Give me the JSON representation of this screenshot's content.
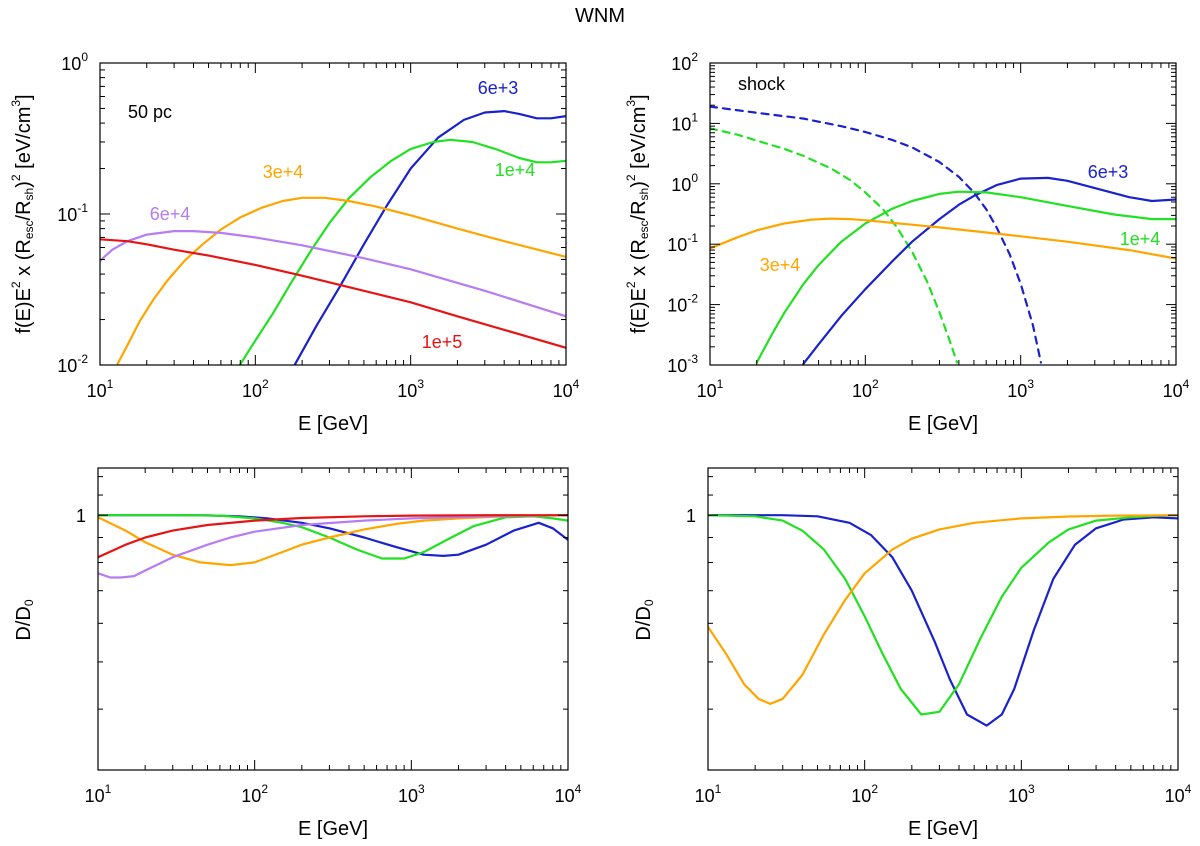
{
  "figure_title": "WNM",
  "colors": {
    "blue": "#1a22cc",
    "green": "#22e022",
    "orange": "#ffa500",
    "purple": "#b77cf2",
    "red": "#e61414"
  },
  "chart_data": [
    {
      "id": "tl",
      "type": "line",
      "xscale": "log",
      "yscale": "log",
      "xlim": [
        10,
        10000
      ],
      "ylim": [
        0.01,
        1
      ],
      "xlabel": "E [GeV]",
      "ylabel": "f(E)E^2 x (R_esc/R_sh)^2 [eV/cm^3]",
      "annotation": "50 pc",
      "x_ticks": [
        10,
        100,
        1000,
        10000
      ],
      "x_tick_labels": [
        {
          "base": "10",
          "exp": "1"
        },
        {
          "base": "10",
          "exp": "2"
        },
        {
          "base": "10",
          "exp": "3"
        },
        {
          "base": "10",
          "exp": "4"
        }
      ],
      "y_ticks": [
        0.01,
        0.1,
        1
      ],
      "y_tick_labels": [
        {
          "base": "10",
          "exp": "-2"
        },
        {
          "base": "10",
          "exp": "-1"
        },
        {
          "base": "10",
          "exp": "0"
        }
      ],
      "series": [
        {
          "name": "6e+3",
          "label": "6e+3",
          "color": "#1a22cc",
          "dash": false,
          "x": [
            180,
            250,
            350,
            500,
            700,
            1000,
            1500,
            2200,
            3000,
            4000,
            5000,
            6500,
            8000,
            10000
          ],
          "y": [
            0.0101,
            0.0185,
            0.033,
            0.063,
            0.113,
            0.2,
            0.32,
            0.42,
            0.47,
            0.48,
            0.46,
            0.43,
            0.43,
            0.445
          ]
        },
        {
          "name": "1e+4",
          "label": "1e+4",
          "color": "#22e022",
          "dash": false,
          "x": [
            80,
            100,
            130,
            170,
            230,
            300,
            400,
            550,
            750,
            1000,
            1400,
            1800,
            2500,
            3500,
            5000,
            6500,
            8000,
            10000
          ],
          "y": [
            0.0101,
            0.0145,
            0.022,
            0.035,
            0.058,
            0.087,
            0.127,
            0.175,
            0.225,
            0.27,
            0.3,
            0.31,
            0.3,
            0.27,
            0.235,
            0.22,
            0.22,
            0.225
          ]
        },
        {
          "name": "3e+4",
          "label": "3e+4",
          "color": "#ffa500",
          "dash": false,
          "x": [
            13,
            15,
            18,
            22,
            27,
            35,
            45,
            60,
            80,
            110,
            150,
            200,
            280,
            400,
            600,
            1000,
            2000,
            4000,
            10000
          ],
          "y": [
            0.0102,
            0.0135,
            0.0195,
            0.027,
            0.036,
            0.049,
            0.062,
            0.079,
            0.095,
            0.11,
            0.122,
            0.128,
            0.128,
            0.122,
            0.112,
            0.098,
            0.08,
            0.066,
            0.052
          ]
        },
        {
          "name": "6e+4",
          "label": "6e+4",
          "color": "#b77cf2",
          "dash": false,
          "x": [
            10,
            12,
            15,
            20,
            30,
            40,
            60,
            100,
            200,
            500,
            1000,
            3000,
            10000
          ],
          "y": [
            0.049,
            0.058,
            0.066,
            0.073,
            0.077,
            0.077,
            0.075,
            0.07,
            0.062,
            0.051,
            0.043,
            0.031,
            0.021
          ]
        },
        {
          "name": "1e+5",
          "label": "1e+5",
          "color": "#e61414",
          "dash": false,
          "x": [
            10,
            15,
            20,
            30,
            50,
            100,
            200,
            500,
            1000,
            2000,
            5000,
            10000
          ],
          "y": [
            0.068,
            0.066,
            0.063,
            0.058,
            0.053,
            0.046,
            0.039,
            0.031,
            0.026,
            0.021,
            0.016,
            0.013
          ]
        }
      ]
    },
    {
      "id": "tr",
      "type": "line",
      "xscale": "log",
      "yscale": "log",
      "xlim": [
        10,
        10000
      ],
      "ylim": [
        0.001,
        100
      ],
      "xlabel": "E [GeV]",
      "ylabel": "f(E)E^2 x (R_esc/R_sh)^2 [eV/cm^3]",
      "annotation": "shock",
      "x_ticks": [
        10,
        100,
        1000,
        10000
      ],
      "x_tick_labels": [
        {
          "base": "10",
          "exp": "1"
        },
        {
          "base": "10",
          "exp": "2"
        },
        {
          "base": "10",
          "exp": "3"
        },
        {
          "base": "10",
          "exp": "4"
        }
      ],
      "y_ticks": [
        0.001,
        0.01,
        0.1,
        1,
        10,
        100
      ],
      "y_tick_labels": [
        {
          "base": "10",
          "exp": "-3"
        },
        {
          "base": "10",
          "exp": "-2"
        },
        {
          "base": "10",
          "exp": "-1"
        },
        {
          "base": "10",
          "exp": "0"
        },
        {
          "base": "10",
          "exp": "1"
        },
        {
          "base": "10",
          "exp": "2"
        }
      ],
      "series": [
        {
          "name": "blue dashed",
          "label": "",
          "color": "#1a22cc",
          "dash": true,
          "x": [
            10,
            20,
            40,
            70,
            100,
            150,
            200,
            300,
            400,
            500,
            600,
            700,
            850,
            1000,
            1200,
            1350
          ],
          "y": [
            19,
            15,
            12,
            9,
            7.2,
            5.3,
            4,
            2.3,
            1.3,
            0.72,
            0.38,
            0.19,
            0.068,
            0.022,
            0.0045,
            0.0011
          ]
        },
        {
          "name": "green dashed",
          "label": "",
          "color": "#22e022",
          "dash": true,
          "x": [
            10,
            15,
            20,
            30,
            40,
            60,
            80,
            100,
            130,
            160,
            200,
            250,
            300,
            350,
            390
          ],
          "y": [
            8.3,
            6.5,
            5.2,
            3.8,
            2.9,
            1.8,
            1.15,
            0.72,
            0.38,
            0.19,
            0.075,
            0.024,
            0.0075,
            0.0025,
            0.0011
          ]
        },
        {
          "name": "6e+3",
          "label": "6e+3",
          "color": "#1a22cc",
          "dash": false,
          "x": [
            40,
            50,
            70,
            100,
            150,
            200,
            300,
            400,
            500,
            700,
            1000,
            1500,
            2000,
            3000,
            5000,
            7000,
            10000
          ],
          "y": [
            0.00105,
            0.0022,
            0.0065,
            0.018,
            0.053,
            0.11,
            0.26,
            0.45,
            0.63,
            0.95,
            1.22,
            1.25,
            1.12,
            0.85,
            0.6,
            0.52,
            0.55
          ]
        },
        {
          "name": "1e+4",
          "label": "1e+4",
          "color": "#22e022",
          "dash": false,
          "x": [
            20,
            25,
            30,
            40,
            50,
            70,
            100,
            150,
            200,
            300,
            400,
            600,
            1000,
            2000,
            4000,
            7000,
            10000
          ],
          "y": [
            0.0011,
            0.0032,
            0.0072,
            0.022,
            0.045,
            0.11,
            0.22,
            0.39,
            0.52,
            0.68,
            0.74,
            0.72,
            0.6,
            0.43,
            0.31,
            0.26,
            0.26
          ]
        },
        {
          "name": "3e+4",
          "label": "3e+4",
          "color": "#ffa500",
          "dash": false,
          "x": [
            10,
            15,
            20,
            30,
            45,
            60,
            80,
            100,
            150,
            200,
            300,
            500,
            1000,
            2000,
            5000,
            10000
          ],
          "y": [
            0.085,
            0.13,
            0.17,
            0.22,
            0.255,
            0.265,
            0.26,
            0.25,
            0.225,
            0.21,
            0.19,
            0.165,
            0.135,
            0.11,
            0.08,
            0.058
          ]
        }
      ]
    },
    {
      "id": "bl",
      "type": "line",
      "xscale": "log",
      "yscale": "log",
      "xlim": [
        10,
        10000
      ],
      "ylim": [
        0.3,
        1.25
      ],
      "xlabel": "E [GeV]",
      "ylabel": "D/D_0",
      "x_ticks": [
        10,
        100,
        1000,
        10000
      ],
      "x_tick_labels": [
        {
          "base": "10",
          "exp": "1"
        },
        {
          "base": "10",
          "exp": "2"
        },
        {
          "base": "10",
          "exp": "3"
        },
        {
          "base": "10",
          "exp": "4"
        }
      ],
      "y_ticks": [
        1
      ],
      "y_tick_labels": [
        {
          "base": "1",
          "exp": ""
        }
      ],
      "series": [
        {
          "name": "6e+3",
          "label": "",
          "color": "#1a22cc",
          "dash": false,
          "x": [
            10,
            30,
            50,
            80,
            120,
            200,
            300,
            500,
            800,
            1200,
            1600,
            2000,
            3000,
            4500,
            6500,
            8000,
            10000
          ],
          "y": [
            1,
            1,
            0.999,
            0.995,
            0.985,
            0.965,
            0.94,
            0.9,
            0.86,
            0.83,
            0.825,
            0.83,
            0.87,
            0.93,
            0.965,
            0.94,
            0.89
          ]
        },
        {
          "name": "1e+4",
          "label": "",
          "color": "#22e022",
          "dash": false,
          "x": [
            10,
            30,
            60,
            100,
            150,
            200,
            300,
            450,
            650,
            900,
            1200,
            1800,
            2500,
            4000,
            6000,
            8000,
            10000
          ],
          "y": [
            1,
            1,
            0.998,
            0.985,
            0.965,
            0.945,
            0.9,
            0.85,
            0.815,
            0.815,
            0.84,
            0.9,
            0.95,
            0.99,
            0.995,
            0.985,
            0.975
          ]
        },
        {
          "name": "3e+4",
          "label": "",
          "color": "#ffa500",
          "dash": false,
          "x": [
            10,
            15,
            20,
            30,
            45,
            70,
            100,
            150,
            200,
            300,
            500,
            800,
            1200,
            2000,
            4000,
            10000
          ],
          "y": [
            0.99,
            0.93,
            0.88,
            0.83,
            0.8,
            0.79,
            0.8,
            0.84,
            0.87,
            0.9,
            0.935,
            0.96,
            0.975,
            0.985,
            0.995,
            1
          ]
        },
        {
          "name": "6e+4",
          "label": "",
          "color": "#b77cf2",
          "dash": false,
          "x": [
            10,
            12,
            14,
            17,
            20,
            30,
            50,
            70,
            100,
            200,
            500,
            1000,
            3000,
            10000
          ],
          "y": [
            0.76,
            0.745,
            0.745,
            0.75,
            0.77,
            0.82,
            0.87,
            0.9,
            0.925,
            0.955,
            0.975,
            0.985,
            0.995,
            1
          ]
        },
        {
          "name": "1e+5",
          "label": "",
          "color": "#e61414",
          "dash": false,
          "x": [
            10,
            15,
            20,
            30,
            50,
            100,
            200,
            500,
            1000,
            3000,
            10000
          ],
          "y": [
            0.82,
            0.87,
            0.9,
            0.93,
            0.955,
            0.975,
            0.987,
            0.995,
            0.998,
            1,
            1
          ]
        }
      ]
    },
    {
      "id": "br",
      "type": "line",
      "xscale": "log",
      "yscale": "log",
      "xlim": [
        10,
        10000
      ],
      "ylim": [
        0.3,
        1.25
      ],
      "xlabel": "E [GeV]",
      "ylabel": "D/D_0",
      "x_ticks": [
        10,
        100,
        1000,
        10000
      ],
      "x_tick_labels": [
        {
          "base": "10",
          "exp": "1"
        },
        {
          "base": "10",
          "exp": "2"
        },
        {
          "base": "10",
          "exp": "3"
        },
        {
          "base": "10",
          "exp": "4"
        }
      ],
      "y_ticks": [
        1
      ],
      "y_tick_labels": [
        {
          "base": "1",
          "exp": ""
        }
      ],
      "series": [
        {
          "name": "6e+3",
          "label": "",
          "color": "#1a22cc",
          "dash": false,
          "x": [
            10,
            30,
            50,
            80,
            110,
            150,
            200,
            280,
            350,
            450,
            600,
            750,
            900,
            1200,
            1600,
            2200,
            3000,
            4500,
            7000,
            10000
          ],
          "y": [
            1,
            1,
            0.995,
            0.965,
            0.91,
            0.82,
            0.7,
            0.55,
            0.46,
            0.39,
            0.37,
            0.39,
            0.44,
            0.58,
            0.74,
            0.87,
            0.94,
            0.98,
            0.99,
            0.985
          ]
        },
        {
          "name": "1e+4",
          "label": "",
          "color": "#22e022",
          "dash": false,
          "x": [
            10,
            20,
            30,
            40,
            55,
            75,
            100,
            130,
            170,
            230,
            300,
            400,
            550,
            750,
            1000,
            1500,
            2000,
            3000,
            5000,
            7000,
            10000
          ],
          "y": [
            1,
            0.995,
            0.975,
            0.93,
            0.85,
            0.74,
            0.62,
            0.52,
            0.44,
            0.39,
            0.395,
            0.45,
            0.56,
            0.68,
            0.78,
            0.88,
            0.935,
            0.975,
            0.99,
            0.997,
            1
          ]
        },
        {
          "name": "3e+4",
          "label": "",
          "color": "#ffa500",
          "dash": false,
          "x": [
            10,
            13,
            17,
            21,
            25,
            30,
            40,
            55,
            75,
            100,
            150,
            200,
            300,
            500,
            1000,
            2000,
            4000,
            10000
          ],
          "y": [
            0.59,
            0.52,
            0.45,
            0.42,
            0.41,
            0.42,
            0.47,
            0.57,
            0.67,
            0.76,
            0.85,
            0.895,
            0.935,
            0.965,
            0.985,
            0.994,
            0.998,
            1
          ]
        }
      ]
    }
  ],
  "panel_labels": {
    "tl": [
      {
        "text": "6e+3",
        "color": "#1a22cc"
      },
      {
        "text": "3e+4",
        "color": "#ffa500"
      },
      {
        "text": "1e+4",
        "color": "#22e022"
      },
      {
        "text": "6e+4",
        "color": "#b77cf2"
      },
      {
        "text": "1e+5",
        "color": "#e61414"
      }
    ],
    "tr": [
      {
        "text": "6e+3",
        "color": "#1a22cc"
      },
      {
        "text": "3e+4",
        "color": "#ffa500"
      },
      {
        "text": "1e+4",
        "color": "#22e022"
      }
    ]
  }
}
